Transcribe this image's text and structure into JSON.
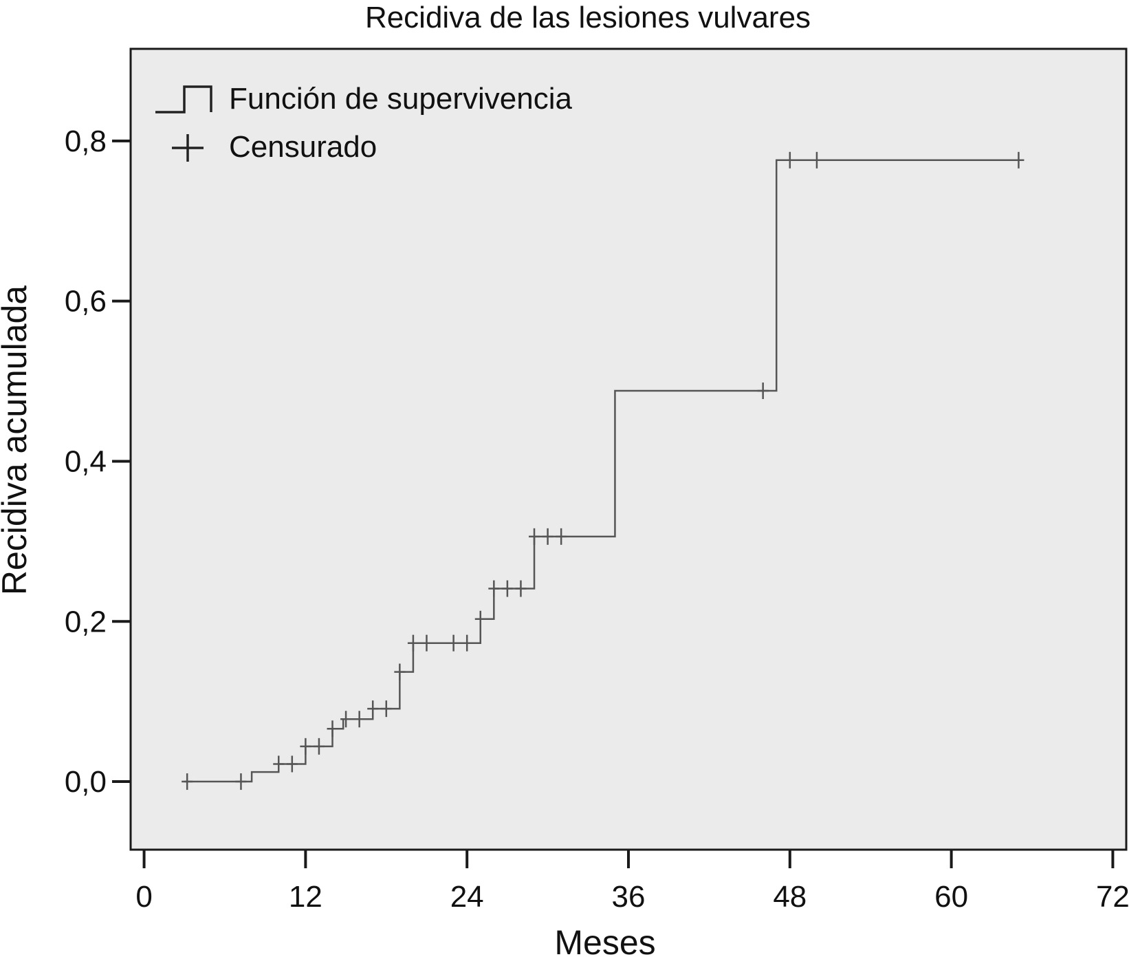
{
  "chart_data": {
    "type": "line",
    "subtype": "kaplan-meier-cumulative-step",
    "title": "Recidiva de las lesiones vulvares",
    "xlabel": "Meses",
    "ylabel": "Recidiva acumulada",
    "xlim": [
      -1,
      73
    ],
    "ylim": [
      -0.085,
      0.915
    ],
    "xticks": [
      0,
      12,
      24,
      36,
      48,
      60,
      72
    ],
    "xtick_labels": [
      "0",
      "12",
      "24",
      "36",
      "48",
      "60",
      "72"
    ],
    "yticks": [
      0.0,
      0.2,
      0.4,
      0.6,
      0.8
    ],
    "ytick_labels": [
      "0,0",
      "0,2",
      "0,4",
      "0,6",
      "0,8"
    ],
    "grid": false,
    "legend_position": "top-left",
    "legend": [
      {
        "label": "Función de supervivencia",
        "symbol": "step-line"
      },
      {
        "label": "Censurado",
        "symbol": "plus"
      }
    ],
    "plot_background": "#ebebeb",
    "line_color": "#555555",
    "series": [
      {
        "name": "Función de supervivencia",
        "steps": [
          {
            "x": 3.0,
            "y": 0.0
          },
          {
            "x": 8.0,
            "y": 0.012
          },
          {
            "x": 10.0,
            "y": 0.022
          },
          {
            "x": 12.0,
            "y": 0.044
          },
          {
            "x": 14.0,
            "y": 0.066
          },
          {
            "x": 14.8,
            "y": 0.078
          },
          {
            "x": 17.0,
            "y": 0.091
          },
          {
            "x": 19.0,
            "y": 0.137
          },
          {
            "x": 20.0,
            "y": 0.173
          },
          {
            "x": 25.0,
            "y": 0.203
          },
          {
            "x": 26.0,
            "y": 0.241
          },
          {
            "x": 29.0,
            "y": 0.306
          },
          {
            "x": 35.0,
            "y": 0.488
          },
          {
            "x": 47.0,
            "y": 0.776
          }
        ],
        "end_x": 65.0
      },
      {
        "name": "Censurado",
        "points": [
          {
            "x": 3.2,
            "y": 0.0
          },
          {
            "x": 7.2,
            "y": 0.0
          },
          {
            "x": 10.0,
            "y": 0.022
          },
          {
            "x": 11.0,
            "y": 0.022
          },
          {
            "x": 12.0,
            "y": 0.044
          },
          {
            "x": 13.0,
            "y": 0.044
          },
          {
            "x": 14.0,
            "y": 0.066
          },
          {
            "x": 15.0,
            "y": 0.078
          },
          {
            "x": 16.0,
            "y": 0.078
          },
          {
            "x": 17.0,
            "y": 0.091
          },
          {
            "x": 18.0,
            "y": 0.091
          },
          {
            "x": 19.0,
            "y": 0.137
          },
          {
            "x": 20.0,
            "y": 0.173
          },
          {
            "x": 21.0,
            "y": 0.173
          },
          {
            "x": 23.0,
            "y": 0.173
          },
          {
            "x": 24.0,
            "y": 0.173
          },
          {
            "x": 25.0,
            "y": 0.203
          },
          {
            "x": 26.0,
            "y": 0.241
          },
          {
            "x": 27.0,
            "y": 0.241
          },
          {
            "x": 28.0,
            "y": 0.241
          },
          {
            "x": 29.0,
            "y": 0.306
          },
          {
            "x": 30.0,
            "y": 0.306
          },
          {
            "x": 31.0,
            "y": 0.306
          },
          {
            "x": 46.0,
            "y": 0.488
          },
          {
            "x": 48.0,
            "y": 0.776
          },
          {
            "x": 50.0,
            "y": 0.776
          },
          {
            "x": 65.0,
            "y": 0.776
          }
        ]
      }
    ]
  }
}
